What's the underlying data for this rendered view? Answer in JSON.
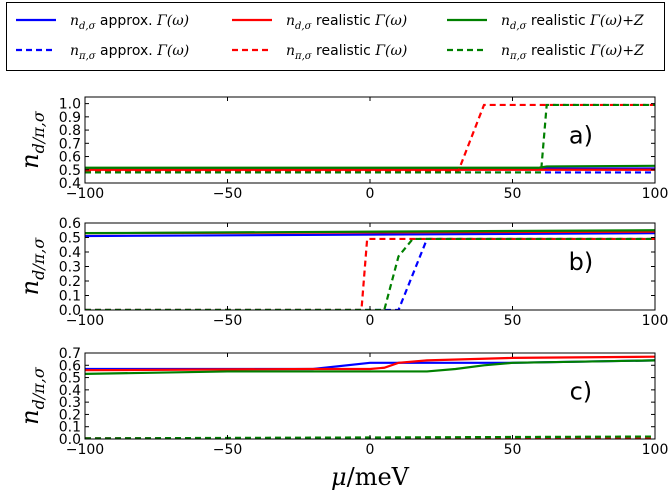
{
  "legend": {
    "items": [
      {
        "sym": "n",
        "sub": "d,σ",
        "word": "approx.",
        "gamma": "Γ(ω)",
        "extra": "",
        "color": "#0000ff",
        "dash": false
      },
      {
        "sym": "n",
        "sub": "d,σ",
        "word": "realistic",
        "gamma": "Γ(ω)",
        "extra": "",
        "color": "#ff0000",
        "dash": false
      },
      {
        "sym": "n",
        "sub": "d,σ",
        "word": "realistic",
        "gamma": "Γ(ω)",
        "extra": "+Z",
        "color": "#008000",
        "dash": false
      },
      {
        "sym": "n",
        "sub": "π,σ",
        "word": "approx.",
        "gamma": "Γ(ω)",
        "extra": "",
        "color": "#0000ff",
        "dash": true
      },
      {
        "sym": "n",
        "sub": "π,σ",
        "word": "realistic",
        "gamma": "Γ(ω)",
        "extra": "",
        "color": "#ff0000",
        "dash": true
      },
      {
        "sym": "n",
        "sub": "π,σ",
        "word": "realistic",
        "gamma": "Γ(ω)",
        "extra": "+Z",
        "color": "#008000",
        "dash": true
      }
    ]
  },
  "chart_data": [
    {
      "type": "line",
      "panel_label": "a)",
      "ylabel": {
        "sym": "n",
        "sub": "d/π,σ"
      },
      "xlim": [
        -100,
        100
      ],
      "ylim": [
        0.4,
        1.05
      ],
      "xticks": [
        -100,
        -50,
        0,
        50,
        100
      ],
      "xtick_labels": [
        "−100",
        "−50",
        "0",
        "50",
        "100"
      ],
      "yticks": [
        0.4,
        0.5,
        0.6,
        0.7,
        0.8,
        0.9,
        1.0
      ],
      "ytick_labels": [
        "0.4",
        "0.5",
        "0.6",
        "0.7",
        "0.8",
        "0.9",
        "1.0"
      ],
      "series": [
        {
          "color": "#0000ff",
          "dash": false,
          "x": [
            -100,
            100
          ],
          "y": [
            0.51,
            0.51
          ]
        },
        {
          "color": "#ff0000",
          "dash": false,
          "x": [
            -100,
            100
          ],
          "y": [
            0.5,
            0.5
          ]
        },
        {
          "color": "#008000",
          "dash": false,
          "x": [
            -100,
            59,
            62,
            100
          ],
          "y": [
            0.515,
            0.515,
            0.525,
            0.53
          ]
        },
        {
          "color": "#0000ff",
          "dash": true,
          "x": [
            -100,
            100
          ],
          "y": [
            0.48,
            0.48
          ]
        },
        {
          "color": "#ff0000",
          "dash": true,
          "x": [
            -100,
            31,
            40,
            100
          ],
          "y": [
            0.49,
            0.49,
            0.99,
            0.99
          ]
        },
        {
          "color": "#008000",
          "dash": true,
          "x": [
            -100,
            60,
            62,
            100
          ],
          "y": [
            0.48,
            0.48,
            0.99,
            0.99
          ]
        }
      ]
    },
    {
      "type": "line",
      "panel_label": "b)",
      "ylabel": {
        "sym": "n",
        "sub": "d/π,σ"
      },
      "xlim": [
        -100,
        100
      ],
      "ylim": [
        0.0,
        0.6
      ],
      "xticks": [
        -100,
        -50,
        0,
        50,
        100
      ],
      "xtick_labels": [
        "−100",
        "−50",
        "0",
        "50",
        "100"
      ],
      "yticks": [
        0.0,
        0.1,
        0.2,
        0.3,
        0.4,
        0.5,
        0.6
      ],
      "ytick_labels": [
        "0.0",
        "0.1",
        "0.2",
        "0.3",
        "0.4",
        "0.5",
        "0.6"
      ],
      "series": [
        {
          "color": "#0000ff",
          "dash": false,
          "x": [
            -100,
            100
          ],
          "y": [
            0.51,
            0.53
          ]
        },
        {
          "color": "#ff0000",
          "dash": false,
          "x": [
            -100,
            100
          ],
          "y": [
            0.53,
            0.54
          ]
        },
        {
          "color": "#008000",
          "dash": false,
          "x": [
            -100,
            100
          ],
          "y": [
            0.53,
            0.55
          ]
        },
        {
          "color": "#0000ff",
          "dash": true,
          "x": [
            -100,
            10,
            20,
            100
          ],
          "y": [
            0.0,
            0.0,
            0.49,
            0.49
          ]
        },
        {
          "color": "#ff0000",
          "dash": true,
          "x": [
            -100,
            -3,
            -1,
            100
          ],
          "y": [
            0.0,
            0.0,
            0.49,
            0.49
          ]
        },
        {
          "color": "#008000",
          "dash": true,
          "x": [
            -100,
            5,
            10,
            15,
            100
          ],
          "y": [
            0.0,
            0.0,
            0.37,
            0.49,
            0.49
          ]
        }
      ]
    },
    {
      "type": "line",
      "panel_label": "c)",
      "ylabel": {
        "sym": "n",
        "sub": "d/π,σ"
      },
      "xlabel": {
        "sym": "μ",
        "unit": "meV"
      },
      "xlim": [
        -100,
        100
      ],
      "ylim": [
        0.0,
        0.7
      ],
      "xticks": [
        -100,
        -50,
        0,
        50,
        100
      ],
      "xtick_labels": [
        "−100",
        "−50",
        "0",
        "50",
        "100"
      ],
      "yticks": [
        0.0,
        0.1,
        0.2,
        0.3,
        0.4,
        0.5,
        0.6,
        0.7
      ],
      "ytick_labels": [
        "0.0",
        "0.1",
        "0.2",
        "0.3",
        "0.4",
        "0.5",
        "0.6",
        "0.7"
      ],
      "series": [
        {
          "color": "#0000ff",
          "dash": false,
          "x": [
            -100,
            -20,
            0,
            20,
            50,
            100
          ],
          "y": [
            0.57,
            0.57,
            0.62,
            0.62,
            0.62,
            0.64
          ]
        },
        {
          "color": "#ff0000",
          "dash": false,
          "x": [
            -100,
            -20,
            0,
            5,
            10,
            20,
            50,
            100
          ],
          "y": [
            0.56,
            0.57,
            0.57,
            0.58,
            0.62,
            0.64,
            0.66,
            0.67
          ]
        },
        {
          "color": "#008000",
          "dash": false,
          "x": [
            -100,
            -50,
            0,
            20,
            30,
            40,
            50,
            100
          ],
          "y": [
            0.53,
            0.55,
            0.55,
            0.55,
            0.57,
            0.6,
            0.62,
            0.64
          ]
        },
        {
          "color": "#0000ff",
          "dash": true,
          "x": [
            -100,
            100
          ],
          "y": [
            0.005,
            0.01
          ]
        },
        {
          "color": "#ff0000",
          "dash": true,
          "x": [
            -100,
            100
          ],
          "y": [
            0.005,
            0.01
          ]
        },
        {
          "color": "#008000",
          "dash": true,
          "x": [
            -100,
            100
          ],
          "y": [
            0.005,
            0.02
          ]
        }
      ]
    }
  ]
}
